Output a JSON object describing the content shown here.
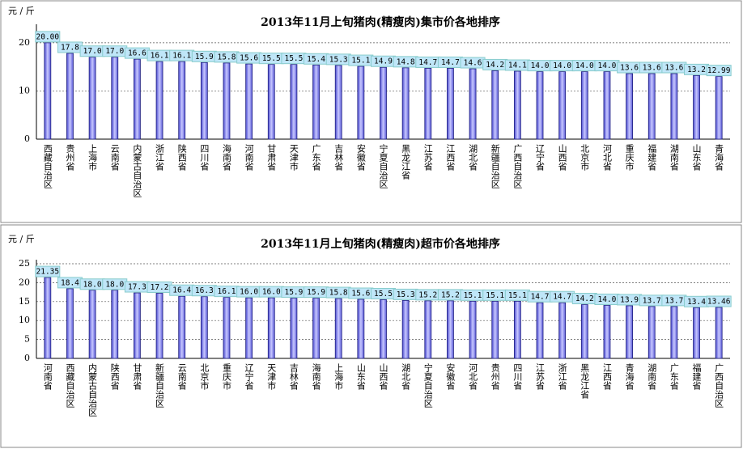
{
  "chart_data": [
    {
      "type": "bar",
      "title": "2013年11月上旬猪肉(精瘦肉)集市价各地排序",
      "y_label": "元 / 斤",
      "color": "#7b7be8",
      "categories": [
        "西藏自治区",
        "贵州省",
        "上海市",
        "云南省",
        "内蒙古自治区",
        "浙江省",
        "陕西省",
        "四川省",
        "海南省",
        "河南省",
        "甘肃省",
        "天津市",
        "广东省",
        "吉林省",
        "安徽省",
        "宁夏自治区",
        "黑龙江省",
        "江苏省",
        "江西省",
        "湖北省",
        "新疆自治区",
        "广西自治区",
        "辽宁省",
        "山西省",
        "北京市",
        "河北省",
        "重庆市",
        "福建省",
        "湖南省",
        "山东省",
        "青海省"
      ],
      "values": [
        20,
        17.8,
        17,
        17,
        16.6,
        16.1,
        16.1,
        15.9,
        15.8,
        15.6,
        15.5,
        15.5,
        15.4,
        15.3,
        15.1,
        14.9,
        14.8,
        14.7,
        14.7,
        14.6,
        14.2,
        14.1,
        14,
        14,
        14,
        14,
        13.6,
        13.6,
        13.6,
        13.2,
        12.99
      ],
      "value_labels": [
        "20.00",
        "17.8",
        "17.0",
        "17.0",
        "16.6",
        "16.1",
        "16.1",
        "15.9",
        "15.8",
        "15.6",
        "15.5",
        "15.5",
        "15.4",
        "15.3",
        "15.1",
        "14.9",
        "14.8",
        "14.7",
        "14.7",
        "14.6",
        "14.2",
        "14.1",
        "14.0",
        "14.0",
        "14.0",
        "14.0",
        "13.6",
        "13.6",
        "13.6",
        "13.2",
        "12.99"
      ],
      "ylim": [
        0,
        23
      ],
      "yticks": [
        0,
        10,
        20
      ],
      "grid": true
    },
    {
      "type": "bar",
      "title": "2013年11月上旬猪肉(精瘦肉)超市价各地排序",
      "y_label": "元 / 斤",
      "color": "#7b7be8",
      "categories": [
        "河南省",
        "西藏自治区",
        "内蒙古自治区",
        "陕西省",
        "甘肃省",
        "新疆自治区",
        "云南省",
        "北京市",
        "重庆市",
        "辽宁省",
        "天津市",
        "吉林省",
        "海南省",
        "上海市",
        "山东省",
        "山西省",
        "湖北省",
        "宁夏自治区",
        "安徽省",
        "河北省",
        "贵州省",
        "四川省",
        "江苏省",
        "浙江省",
        "黑龙江省",
        "江西省",
        "青海省",
        "湖南省",
        "广东省",
        "福建省",
        "广西自治区"
      ],
      "values": [
        21.35,
        18.4,
        18,
        18,
        17.3,
        17.2,
        16.4,
        16.3,
        16.1,
        16,
        16,
        15.9,
        15.9,
        15.8,
        15.6,
        15.5,
        15.3,
        15.2,
        15.2,
        15.1,
        15.1,
        15.1,
        14.7,
        14.7,
        14.2,
        14,
        13.9,
        13.7,
        13.7,
        13.4,
        13.46
      ],
      "value_labels": [
        "21.35",
        "18.4",
        "18.0",
        "18.0",
        "17.3",
        "17.2",
        "16.4",
        "16.3",
        "16.1",
        "16.0",
        "16.0",
        "15.9",
        "15.9",
        "15.8",
        "15.6",
        "15.5",
        "15.3",
        "15.2",
        "15.2",
        "15.1",
        "15.1",
        "15.1",
        "14.7",
        "14.7",
        "14.2",
        "14.0",
        "13.9",
        "13.7",
        "13.7",
        "13.4",
        "13.46"
      ],
      "ylim": [
        0,
        25
      ],
      "yticks": [
        0,
        5,
        10,
        15,
        20,
        25
      ],
      "grid": true
    }
  ]
}
